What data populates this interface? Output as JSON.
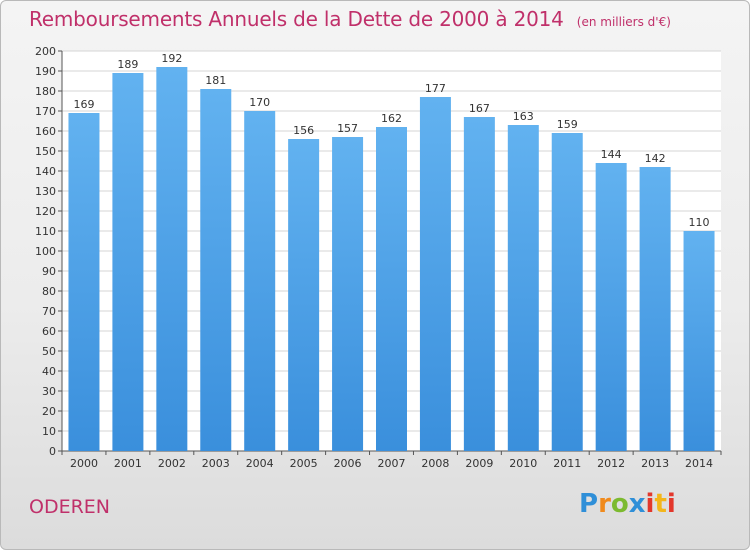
{
  "chart_data": {
    "type": "bar",
    "title": "Remboursements Annuels de la Dette de 2000 à 2014",
    "subtitle": "(en milliers d'€)",
    "xlabel": "",
    "ylabel": "",
    "categories": [
      "2000",
      "2001",
      "2002",
      "2003",
      "2004",
      "2005",
      "2006",
      "2007",
      "2008",
      "2009",
      "2010",
      "2011",
      "2012",
      "2013",
      "2014"
    ],
    "values": [
      169,
      189,
      192,
      181,
      170,
      156,
      157,
      162,
      177,
      167,
      163,
      159,
      144,
      142,
      110
    ],
    "ylim": [
      0,
      200
    ],
    "ytick_step": 10,
    "grid": true,
    "bar_color": "#3a8fdc",
    "bar_color_light": "#62b2f0"
  },
  "footer": {
    "town": "ODEREN",
    "logo_letters": [
      "P",
      "r",
      "o",
      "x",
      "i",
      "t",
      "i"
    ]
  },
  "colors": {
    "title": "#c0306a",
    "grid": "#d5d5d5"
  }
}
